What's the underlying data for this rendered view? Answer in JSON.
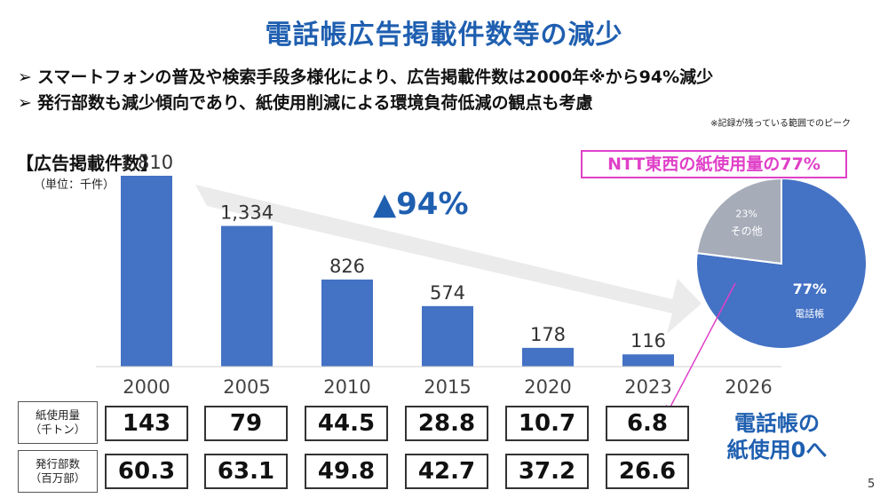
{
  "title": "電話帳広告掲載件数等の減少",
  "bullets": [
    {
      "mark": "➢",
      "text": "スマートフォンの普及や検索手段多様化により、広告掲載件数は2000年※から94%減少"
    },
    {
      "mark": "➢",
      "text": "発行部数も減少傾向であり、紙使用削減による環境負荷低減の観点も考慮"
    }
  ],
  "note": "※記録が残っている範囲でのピーク",
  "section_title": "【広告掲載件数】",
  "unit": "（単位：千件）",
  "change_label": "▲94%",
  "colors": {
    "title": "#1f5fb0",
    "bar": "#4472c4",
    "pie_main": "#4472c4",
    "pie_other": "#a6adb9",
    "highlight": "#e040c8",
    "arrow": "#ebebeb"
  },
  "chart_data": [
    {
      "type": "bar",
      "title": "【広告掲載件数】",
      "ylabel": "（単位：千件）",
      "categories": [
        "2000",
        "2005",
        "2010",
        "2015",
        "2020",
        "2023",
        "2026"
      ],
      "values": [
        1810,
        1334,
        826,
        574,
        178,
        116,
        null
      ],
      "value_labels": [
        "1,810",
        "1,334",
        "826",
        "574",
        "178",
        "116",
        ""
      ],
      "ylim": [
        0,
        1900
      ],
      "grid": false,
      "annotation": "▲94%"
    },
    {
      "type": "pie",
      "title": "NTT東西の紙使用量の77%",
      "slices": [
        {
          "label": "電話帳",
          "value": 77,
          "display": "77%"
        },
        {
          "label": "その他",
          "value": 23,
          "display": "23%"
        }
      ]
    },
    {
      "type": "table",
      "columns": [
        "2000",
        "2005",
        "2010",
        "2015",
        "2020",
        "2023"
      ],
      "rows": [
        {
          "label_line1": "紙使用量",
          "label_line2": "（千トン）",
          "values": [
            "143",
            "79",
            "44.5",
            "28.8",
            "10.7",
            "6.8"
          ]
        },
        {
          "label_line1": "発行部数",
          "label_line2": "（百万部）",
          "values": [
            "60.3",
            "63.1",
            "49.8",
            "42.7",
            "37.2",
            "26.6"
          ]
        }
      ]
    }
  ],
  "target_line1": "電話帳の",
  "target_line2": "紙使用0へ",
  "page_number": "5"
}
